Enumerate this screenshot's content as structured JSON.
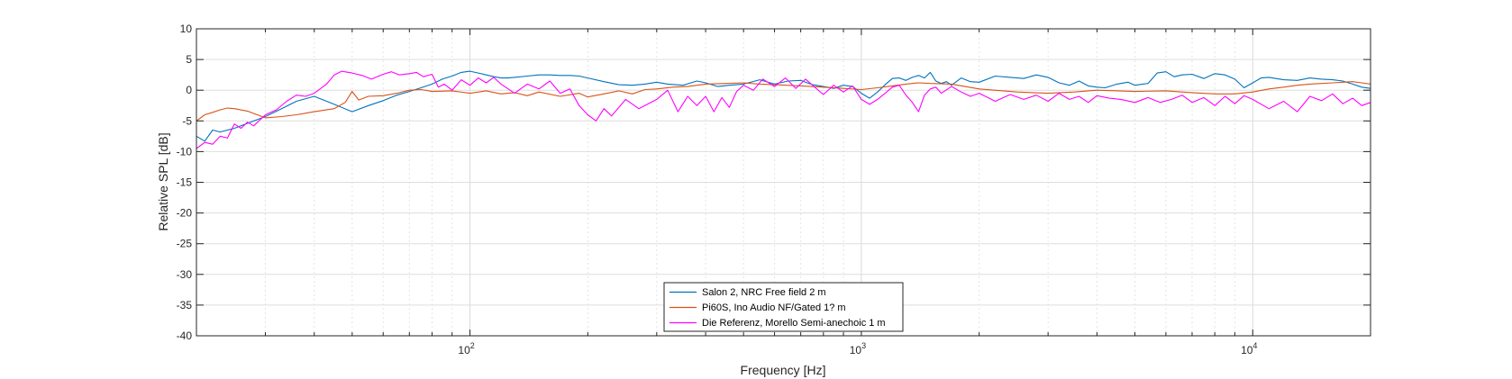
{
  "chart_data": {
    "type": "line",
    "xlabel": "Frequency [Hz]",
    "ylabel": "Relative SPL [dB]",
    "x_scale": "log",
    "xlim": [
      20,
      20000
    ],
    "ylim": [
      -40,
      10
    ],
    "grid": true,
    "legend_position": "bottom-center",
    "x_ticks": [
      {
        "value": 100,
        "base": "10",
        "exp": "2"
      },
      {
        "value": 1000,
        "base": "10",
        "exp": "3"
      },
      {
        "value": 10000,
        "base": "10",
        "exp": "4"
      }
    ],
    "y_ticks": [
      "10",
      "5",
      "0",
      "-5",
      "-10",
      "-15",
      "-20",
      "-25",
      "-30",
      "-35",
      "-40"
    ],
    "series": [
      {
        "name": "Salon 2, NRC Free field 2 m",
        "color": "#0072BD",
        "x": [
          20,
          21,
          22,
          23,
          25,
          27,
          30,
          33,
          36,
          40,
          45,
          50,
          55,
          60,
          65,
          70,
          75,
          80,
          85,
          90,
          95,
          100,
          105,
          110,
          115,
          120,
          125,
          130,
          140,
          150,
          160,
          170,
          180,
          190,
          200,
          220,
          240,
          260,
          280,
          300,
          320,
          350,
          380,
          400,
          430,
          460,
          500,
          550,
          600,
          650,
          700,
          750,
          800,
          850,
          900,
          950,
          1000,
          1050,
          1100,
          1150,
          1200,
          1250,
          1300,
          1350,
          1400,
          1450,
          1500,
          1550,
          1600,
          1650,
          1700,
          1800,
          1900,
          2000,
          2200,
          2400,
          2600,
          2800,
          3000,
          3200,
          3400,
          3600,
          3800,
          4000,
          4200,
          4500,
          4800,
          5000,
          5400,
          5700,
          6000,
          6300,
          6600,
          7000,
          7500,
          8000,
          8500,
          9000,
          9500,
          10000,
          10500,
          11000,
          12000,
          13000,
          14000,
          15000,
          16000,
          17000,
          18000,
          19000,
          20000
        ],
        "y": [
          -7.5,
          -8.3,
          -6.5,
          -6.8,
          -6.2,
          -5.4,
          -4.3,
          -3.0,
          -1.8,
          -1.0,
          -2.3,
          -3.5,
          -2.5,
          -1.7,
          -0.8,
          -0.2,
          0.4,
          1.0,
          1.8,
          2.3,
          2.9,
          3.1,
          2.8,
          2.5,
          2.2,
          2.0,
          2.0,
          2.1,
          2.3,
          2.5,
          2.5,
          2.4,
          2.4,
          2.3,
          2.0,
          1.4,
          0.9,
          0.8,
          1.0,
          1.3,
          1.0,
          0.8,
          1.5,
          1.2,
          0.6,
          0.8,
          1.0,
          1.7,
          1.0,
          1.5,
          1.6,
          0.9,
          0.6,
          0.3,
          0.8,
          0.6,
          -0.5,
          -1.3,
          -0.3,
          0.9,
          1.9,
          2.0,
          1.6,
          2.1,
          2.4,
          2.0,
          2.9,
          1.5,
          1.1,
          1.4,
          0.8,
          2.0,
          1.4,
          1.3,
          2.3,
          2.1,
          1.9,
          2.5,
          2.1,
          1.2,
          0.8,
          1.5,
          0.7,
          0.5,
          0.4,
          1.0,
          1.3,
          0.8,
          1.1,
          2.8,
          3.0,
          2.2,
          2.5,
          2.6,
          1.9,
          2.7,
          2.5,
          1.8,
          0.4,
          1.2,
          2.0,
          2.1,
          1.7,
          1.6,
          2.0,
          1.8,
          1.7,
          1.5,
          1.0,
          0.5,
          0.3
        ]
      },
      {
        "name": "Pi60S, Ino Audio NF/Gated 1? m",
        "color": "#D95319",
        "x": [
          20,
          21,
          22,
          23,
          24,
          25,
          27,
          30,
          33,
          36,
          40,
          45,
          48,
          50,
          52,
          55,
          60,
          65,
          70,
          75,
          80,
          90,
          100,
          110,
          120,
          130,
          140,
          150,
          170,
          190,
          200,
          220,
          240,
          260,
          280,
          300,
          330,
          360,
          400,
          450,
          500,
          550,
          600,
          700,
          800,
          900,
          1000,
          1100,
          1200,
          1300,
          1400,
          1500,
          1700,
          2000,
          2500,
          3000,
          3500,
          4000,
          5000,
          6000,
          7000,
          8000,
          9000,
          10000,
          11000,
          12000,
          13000,
          14000,
          15000,
          16000,
          17000,
          18000,
          19000,
          20000
        ],
        "y": [
          -5.0,
          -4.0,
          -3.6,
          -3.2,
          -2.9,
          -3.0,
          -3.4,
          -4.5,
          -4.3,
          -4.0,
          -3.5,
          -3.0,
          -2.0,
          -0.2,
          -1.6,
          -1.0,
          -0.9,
          -0.5,
          0.0,
          0.1,
          -0.2,
          -0.1,
          -0.5,
          -0.1,
          -0.6,
          -0.4,
          -0.9,
          -0.3,
          -1.0,
          -0.5,
          -1.1,
          -0.6,
          -0.1,
          -0.6,
          0.1,
          0.2,
          0.5,
          0.6,
          1.0,
          1.1,
          1.2,
          1.0,
          0.9,
          0.7,
          0.5,
          0.3,
          0.1,
          0.4,
          0.7,
          1.0,
          1.2,
          1.1,
          1.0,
          0.2,
          -0.3,
          -0.5,
          -0.3,
          0.0,
          -0.2,
          -0.1,
          -0.4,
          -0.6,
          -0.6,
          -0.3,
          0.2,
          0.5,
          0.8,
          1.0,
          1.1,
          1.2,
          1.3,
          1.4,
          1.2,
          1.0
        ]
      },
      {
        "name": "Die Referenz, Morello Semi-anechoic 1 m",
        "color": "#FF00FF",
        "x": [
          20,
          21,
          22,
          23,
          24,
          25,
          26,
          27,
          28,
          30,
          32,
          34,
          36,
          38,
          40,
          43,
          45,
          47,
          50,
          53,
          56,
          60,
          63,
          66,
          70,
          73,
          76,
          80,
          83,
          86,
          90,
          95,
          100,
          105,
          110,
          115,
          120,
          130,
          140,
          150,
          160,
          170,
          180,
          190,
          200,
          210,
          220,
          230,
          250,
          270,
          290,
          300,
          320,
          340,
          360,
          380,
          400,
          420,
          440,
          460,
          480,
          500,
          530,
          560,
          600,
          640,
          680,
          720,
          760,
          800,
          850,
          900,
          950,
          1000,
          1050,
          1100,
          1150,
          1200,
          1250,
          1300,
          1350,
          1400,
          1450,
          1500,
          1550,
          1600,
          1700,
          1800,
          1900,
          2000,
          2200,
          2400,
          2600,
          2800,
          3000,
          3200,
          3400,
          3600,
          3800,
          4000,
          4300,
          4600,
          5000,
          5400,
          5800,
          6200,
          6600,
          7000,
          7500,
          8000,
          8500,
          9000,
          9500,
          10000,
          11000,
          12000,
          13000,
          14000,
          15000,
          16000,
          17000,
          18000,
          19000,
          20000
        ],
        "y": [
          -9.5,
          -8.5,
          -8.8,
          -7.5,
          -7.8,
          -5.5,
          -6.2,
          -5.2,
          -5.8,
          -4.0,
          -3.2,
          -1.8,
          -0.8,
          -1.0,
          -0.5,
          1.0,
          2.5,
          3.1,
          2.8,
          2.4,
          1.8,
          2.6,
          3.0,
          2.5,
          2.7,
          2.9,
          2.2,
          2.6,
          0.5,
          1.0,
          0.0,
          1.7,
          0.8,
          2.0,
          1.2,
          2.1,
          1.0,
          -0.5,
          1.0,
          0.2,
          1.5,
          -0.5,
          0.2,
          -2.5,
          -4.0,
          -5.0,
          -3.0,
          -4.2,
          -1.5,
          -3.0,
          -2.0,
          -1.5,
          0.0,
          -3.5,
          -1.0,
          -2.5,
          -1.0,
          -3.5,
          -1.2,
          -2.8,
          -0.2,
          0.8,
          0.0,
          1.8,
          0.6,
          2.0,
          0.3,
          1.8,
          0.5,
          -0.7,
          0.8,
          -0.3,
          0.7,
          -1.5,
          -2.3,
          -1.5,
          -0.5,
          0.5,
          0.8,
          -0.8,
          -2.0,
          -3.5,
          -0.8,
          0.2,
          0.5,
          -0.5,
          0.6,
          -0.3,
          -1.0,
          -0.5,
          -1.8,
          -0.7,
          -1.5,
          -0.8,
          -1.8,
          -0.5,
          -1.5,
          -1.0,
          -2.0,
          -0.9,
          -1.3,
          -1.5,
          -2.0,
          -1.2,
          -2.0,
          -1.5,
          -0.8,
          -2.0,
          -1.2,
          -2.5,
          -1.0,
          -2.2,
          -0.9,
          -1.5,
          -3.0,
          -1.8,
          -3.5,
          -1.0,
          -1.7,
          -0.6,
          -2.2,
          -1.3,
          -2.5,
          -2.0
        ]
      }
    ]
  }
}
